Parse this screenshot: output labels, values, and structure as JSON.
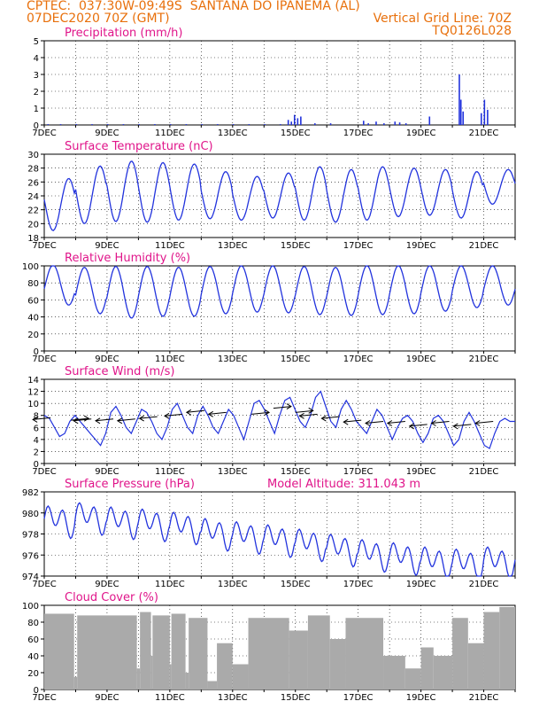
{
  "header": {
    "line1": "CPTEC:  037:30W-09:49S  SANTANA DO IPANEMA (AL)",
    "line2_left": "07DEC2020 70Z (GMT)",
    "line2_right": "Vertical Grid Line: 70Z",
    "line3_right": "TQ0126L028"
  },
  "colors": {
    "series": "#2233dd",
    "title": "#e0158a",
    "header": "#e8700c",
    "cloud": "#aaaaaa",
    "arrow": "#000000"
  },
  "x_labels": [
    "7DEC",
    "9DEC",
    "11DEC",
    "13DEC",
    "15DEC",
    "17DEC",
    "19DEC",
    "21DEC"
  ],
  "chart_data": [
    {
      "type": "bar",
      "title": "Precipitation (mm/h)",
      "x": "days since 7DEC",
      "ylim": [
        0,
        5
      ],
      "yticks": [
        0,
        1,
        2,
        3,
        4,
        5
      ],
      "bars": [
        [
          0.1,
          0.05
        ],
        [
          0.5,
          0.05
        ],
        [
          1.0,
          0.05
        ],
        [
          1.5,
          0.05
        ],
        [
          2.0,
          0.05
        ],
        [
          2.5,
          0.05
        ],
        [
          3.0,
          0.05
        ],
        [
          3.5,
          0.05
        ],
        [
          4.0,
          0.05
        ],
        [
          4.5,
          0.05
        ],
        [
          5.0,
          0.05
        ],
        [
          5.5,
          0.05
        ],
        [
          6.0,
          0.05
        ],
        [
          6.5,
          0.05
        ],
        [
          7.0,
          0.05
        ],
        [
          7.5,
          0.05
        ],
        [
          7.75,
          0.3
        ],
        [
          7.85,
          0.2
        ],
        [
          7.95,
          0.6
        ],
        [
          8.05,
          0.4
        ],
        [
          8.15,
          0.5
        ],
        [
          8.6,
          0.1
        ],
        [
          9.1,
          0.1
        ],
        [
          10.15,
          0.25
        ],
        [
          10.3,
          0.1
        ],
        [
          10.55,
          0.2
        ],
        [
          10.8,
          0.1
        ],
        [
          11.15,
          0.2
        ],
        [
          11.3,
          0.15
        ],
        [
          11.5,
          0.1
        ],
        [
          12.25,
          0.5
        ],
        [
          13.2,
          3.0
        ],
        [
          13.25,
          1.5
        ],
        [
          13.32,
          0.8
        ],
        [
          13.9,
          0.7
        ],
        [
          14.0,
          1.5
        ],
        [
          14.1,
          0.9
        ]
      ]
    },
    {
      "type": "line",
      "title": "Surface Temperature (nC)",
      "ylim": [
        18,
        30
      ],
      "yticks": [
        18,
        20,
        22,
        24,
        26,
        28,
        30
      ],
      "daily_max": [
        26.5,
        28.3,
        29.0,
        28.8,
        28.6,
        27.5,
        26.8,
        27.3,
        28.2,
        27.8,
        28.2,
        28.0,
        27.8,
        27.5,
        27.8
      ],
      "daily_min": [
        19.0,
        20.0,
        20.3,
        20.2,
        20.5,
        20.7,
        20.5,
        20.8,
        20.5,
        20.2,
        20.5,
        21.0,
        21.2,
        20.8,
        22.8
      ]
    },
    {
      "type": "line",
      "title": "Relative Humidity (%)",
      "ylim": [
        0,
        100
      ],
      "yticks": [
        0,
        20,
        40,
        60,
        80,
        100
      ],
      "daily_max": [
        100,
        97,
        98,
        98,
        97,
        98,
        99,
        99,
        98,
        97,
        99,
        99,
        99,
        99,
        99
      ],
      "daily_min": [
        55,
        45,
        40,
        42,
        42,
        45,
        47,
        46,
        44,
        43,
        44,
        45,
        48,
        52,
        55
      ]
    },
    {
      "type": "line",
      "title": "Surface Wind (m/s)",
      "ylim": [
        0,
        14
      ],
      "yticks": [
        0,
        2,
        4,
        6,
        8,
        10,
        12,
        14
      ],
      "speed": [
        8,
        7.5,
        6,
        4.5,
        5,
        7,
        8,
        7,
        6,
        5,
        4,
        3,
        5,
        8.5,
        9.5,
        8,
        6,
        5,
        7,
        9,
        8.5,
        7,
        5,
        4,
        6,
        9,
        10,
        8,
        6,
        5,
        8,
        9.5,
        8,
        6,
        5,
        7,
        9,
        8,
        6,
        4,
        7,
        10,
        10.5,
        9,
        7,
        5,
        8,
        10.5,
        11,
        9,
        7,
        6,
        8,
        11,
        12,
        9.5,
        7,
        6,
        9,
        10.5,
        9,
        7,
        6,
        5,
        7,
        9,
        8,
        6,
        4,
        6,
        7.5,
        8,
        7,
        5,
        3.5,
        5,
        7.5,
        8,
        7,
        5,
        3,
        4,
        7,
        8.5,
        7,
        5,
        3,
        2.5,
        5,
        7,
        7.5,
        7,
        7
      ],
      "arrows": [
        [
          0.2,
          7.6,
          -1
        ],
        [
          0.85,
          7.2,
          1
        ],
        [
          1.5,
          7.4,
          -1
        ],
        [
          2.2,
          7.4,
          -1
        ],
        [
          2.9,
          7.4,
          -1
        ],
        [
          3.6,
          7.8,
          -1
        ],
        [
          4.4,
          8.2,
          -1
        ],
        [
          5.1,
          8.8,
          -1
        ],
        [
          5.8,
          8.5,
          -1
        ],
        [
          6.6,
          8.2,
          1
        ],
        [
          7.3,
          9.2,
          1
        ],
        [
          8.0,
          8.5,
          1
        ],
        [
          8.7,
          8.2,
          -1
        ],
        [
          9.4,
          7.8,
          -1
        ],
        [
          10.1,
          7.2,
          -1
        ],
        [
          10.8,
          7.0,
          -1
        ],
        [
          11.5,
          7.0,
          -1
        ],
        [
          12.2,
          6.5,
          -1
        ],
        [
          12.9,
          7.0,
          -1
        ],
        [
          13.6,
          6.5,
          -1
        ],
        [
          14.3,
          7.0,
          -1
        ]
      ]
    },
    {
      "type": "line",
      "title": "Surface Pressure (hPa)",
      "annotation": "Model Altitude: 311.043 m",
      "ylim": [
        974,
        982
      ],
      "yticks": [
        974,
        976,
        978,
        980,
        982
      ],
      "trend": [
        979.3,
        979.6,
        979.2,
        979.0,
        978.7,
        978.1,
        977.8,
        977.5,
        977.1,
        976.6,
        976.1,
        975.8,
        975.4,
        975.2,
        975.4
      ],
      "amplitude": 1.6
    },
    {
      "type": "bar",
      "title": "Cloud Cover (%)",
      "ylim": [
        0,
        100
      ],
      "yticks": [
        0,
        20,
        40,
        60,
        80,
        100
      ],
      "segments": [
        [
          0,
          0.95,
          90
        ],
        [
          0.95,
          1.05,
          15
        ],
        [
          1.05,
          2.95,
          88
        ],
        [
          2.95,
          3.05,
          25
        ],
        [
          3.05,
          3.4,
          92
        ],
        [
          3.4,
          3.45,
          40
        ],
        [
          3.45,
          4.0,
          88
        ],
        [
          4.0,
          4.05,
          30
        ],
        [
          4.05,
          4.5,
          90
        ],
        [
          4.5,
          4.6,
          20
        ],
        [
          4.6,
          5.2,
          85
        ],
        [
          5.2,
          5.5,
          10
        ],
        [
          5.5,
          6.0,
          55
        ],
        [
          6.0,
          6.5,
          30
        ],
        [
          6.5,
          7.8,
          85
        ],
        [
          7.8,
          8.4,
          70
        ],
        [
          8.4,
          9.1,
          88
        ],
        [
          9.1,
          9.6,
          60
        ],
        [
          9.6,
          10.8,
          85
        ],
        [
          10.8,
          11.5,
          40
        ],
        [
          11.5,
          12.0,
          25
        ],
        [
          12.0,
          12.4,
          50
        ],
        [
          12.4,
          13.0,
          40
        ],
        [
          13.0,
          13.5,
          85
        ],
        [
          13.5,
          14.0,
          55
        ],
        [
          14.0,
          14.5,
          92
        ],
        [
          14.5,
          15.0,
          98
        ]
      ]
    }
  ]
}
